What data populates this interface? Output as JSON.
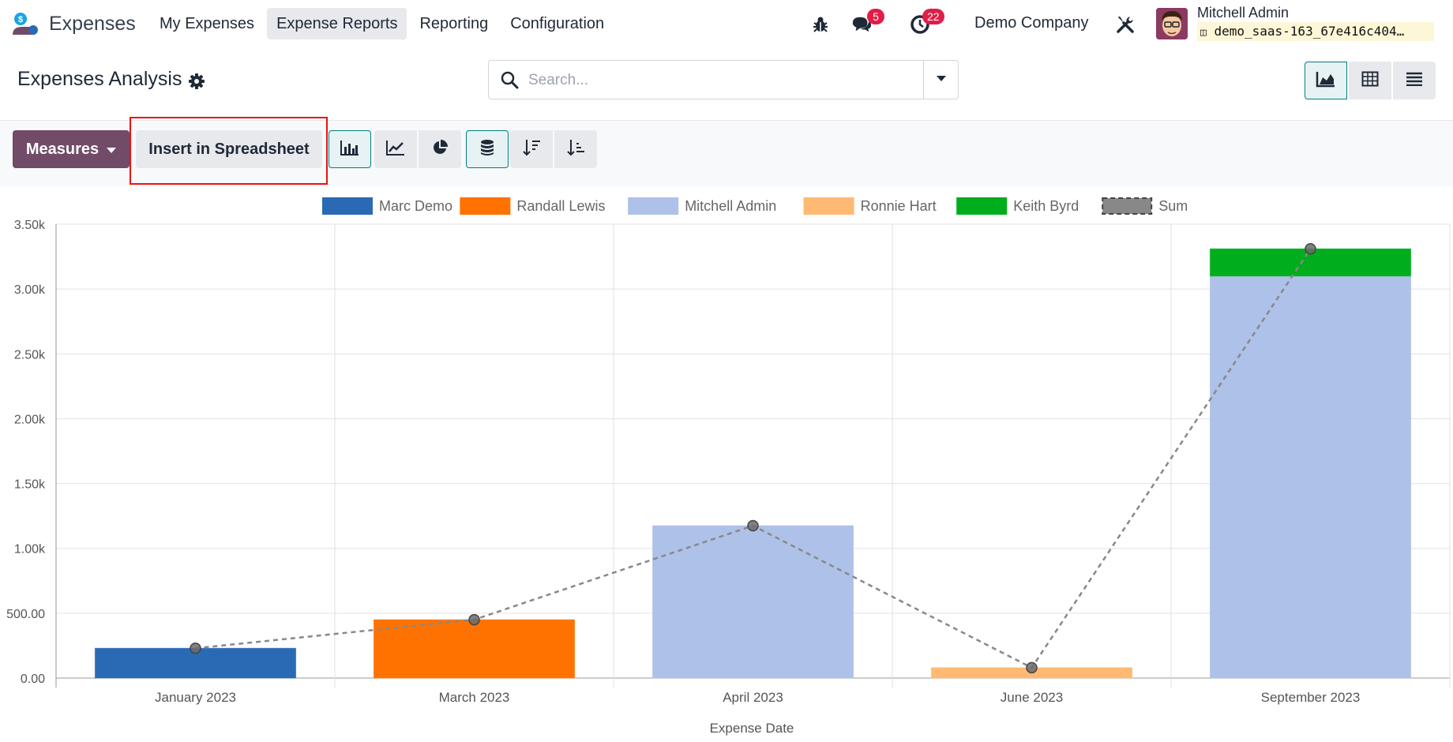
{
  "app": {
    "name": "Expenses"
  },
  "nav": {
    "items": [
      {
        "label": "My Expenses",
        "active": false
      },
      {
        "label": "Expense Reports",
        "active": true
      },
      {
        "label": "Reporting",
        "active": false
      },
      {
        "label": "Configuration",
        "active": false
      }
    ]
  },
  "systray": {
    "messages_count": "5",
    "activities_count": "22",
    "company": "Demo Company",
    "user_name": "Mitchell Admin",
    "database": "demo_saas-163_67e416c404…"
  },
  "control_panel": {
    "title": "Expenses Analysis",
    "search_placeholder": "Search..."
  },
  "toolbar": {
    "measures_label": "Measures",
    "insert_label": "Insert in Spreadsheet"
  },
  "colors": {
    "brand": "#714b67",
    "accent": "#017e84",
    "highlight": "#ee1111"
  },
  "chart_data": {
    "type": "bar",
    "stacked": true,
    "xlabel": "Expense Date",
    "ylabel": "",
    "ylim": [
      0,
      3500
    ],
    "yticks": [
      "0.00",
      "500.00",
      "1.00k",
      "1.50k",
      "2.00k",
      "2.50k",
      "3.00k",
      "3.50k"
    ],
    "categories": [
      "January 2023",
      "March 2023",
      "April 2023",
      "June 2023",
      "September 2023"
    ],
    "series": [
      {
        "name": "Marc Demo",
        "color": "#2a6ab4",
        "values": [
          230,
          0,
          0,
          0,
          0
        ]
      },
      {
        "name": "Randall Lewis",
        "color": "#ff7200",
        "values": [
          0,
          450,
          0,
          0,
          0
        ]
      },
      {
        "name": "Mitchell Admin",
        "color": "#aec1e8",
        "values": [
          0,
          0,
          1175,
          0,
          3100
        ]
      },
      {
        "name": "Ronnie Hart",
        "color": "#ffb973",
        "values": [
          0,
          0,
          0,
          80,
          0
        ]
      },
      {
        "name": "Keith Byrd",
        "color": "#00ad1d",
        "values": [
          0,
          0,
          0,
          0,
          210
        ]
      }
    ],
    "sum": {
      "name": "Sum",
      "color": "#888888",
      "values": [
        230,
        450,
        1175,
        80,
        3310
      ]
    },
    "legend_position": "top",
    "grid": true
  }
}
